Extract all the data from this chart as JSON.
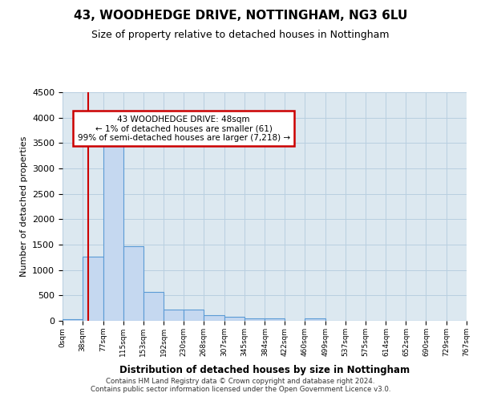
{
  "title": "43, WOODHEDGE DRIVE, NOTTINGHAM, NG3 6LU",
  "subtitle": "Size of property relative to detached houses in Nottingham",
  "xlabel": "Distribution of detached houses by size in Nottingham",
  "ylabel": "Number of detached properties",
  "footer_line1": "Contains HM Land Registry data © Crown copyright and database right 2024.",
  "footer_line2": "Contains public sector information licensed under the Open Government Licence v3.0.",
  "bin_edges": [
    0,
    38,
    77,
    115,
    153,
    192,
    230,
    268,
    307,
    345,
    384,
    422,
    460,
    499,
    537,
    575,
    614,
    652,
    690,
    729,
    767
  ],
  "bar_values": [
    30,
    1270,
    3500,
    1470,
    570,
    220,
    215,
    115,
    75,
    55,
    40,
    0,
    50,
    0,
    0,
    0,
    0,
    0,
    0,
    0
  ],
  "bar_color": "#c5d8f0",
  "bar_edge_color": "#5b9bd5",
  "ylim": [
    0,
    4500
  ],
  "yticks": [
    0,
    500,
    1000,
    1500,
    2000,
    2500,
    3000,
    3500,
    4000,
    4500
  ],
  "property_size": 48,
  "annotation_text_line1": "43 WOODHEDGE DRIVE: 48sqm",
  "annotation_text_line2": "← 1% of detached houses are smaller (61)",
  "annotation_text_line3": "99% of semi-detached houses are larger (7,218) →",
  "annotation_box_color": "#ffffff",
  "annotation_box_edge": "#cc0000",
  "grid_color": "#b8cfe0",
  "bg_color": "#dce8f0"
}
